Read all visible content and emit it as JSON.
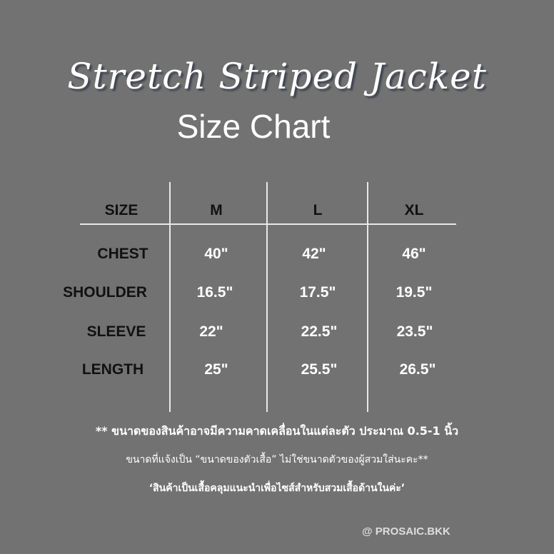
{
  "title": "Stretch Striped Jacket",
  "subtitle": "Size Chart",
  "table": {
    "header_label": "SIZE",
    "sizes": [
      "M",
      "L",
      "XL"
    ],
    "rows": [
      {
        "label": "CHEST",
        "values": [
          "40\"",
          "42\"",
          "46\""
        ]
      },
      {
        "label": "SHOULDER",
        "values": [
          "16.5\"",
          "17.5\"",
          "19.5\""
        ]
      },
      {
        "label": "SLEEVE",
        "values": [
          "22\"",
          "22.5\"",
          "23.5\""
        ]
      },
      {
        "label": "LENGTH",
        "values": [
          "25\"",
          "25.5\"",
          "26.5\""
        ]
      }
    ]
  },
  "notes": [
    "** ขนาดของสินค้าอาจมีความคาดเคลื่อนในแต่ละตัว ประมาณ 0.5-1 นิ้ว",
    "ขนาดที่แจ้งเป็น “ขนาดของตัวเสื้อ” ไม่ใช่ขนาดตัวของผู้สวมใส่นะคะ**",
    "‘สินค้าเป็นเสื้อคลุมแนะนำเพื่อไซส์สำหรับสวมเสื้อด้านในค่ะ’"
  ],
  "footer": "@ PROSAIC.BKK",
  "colors": {
    "background": "#727272",
    "text": "#ffffff",
    "label": "#111111"
  }
}
